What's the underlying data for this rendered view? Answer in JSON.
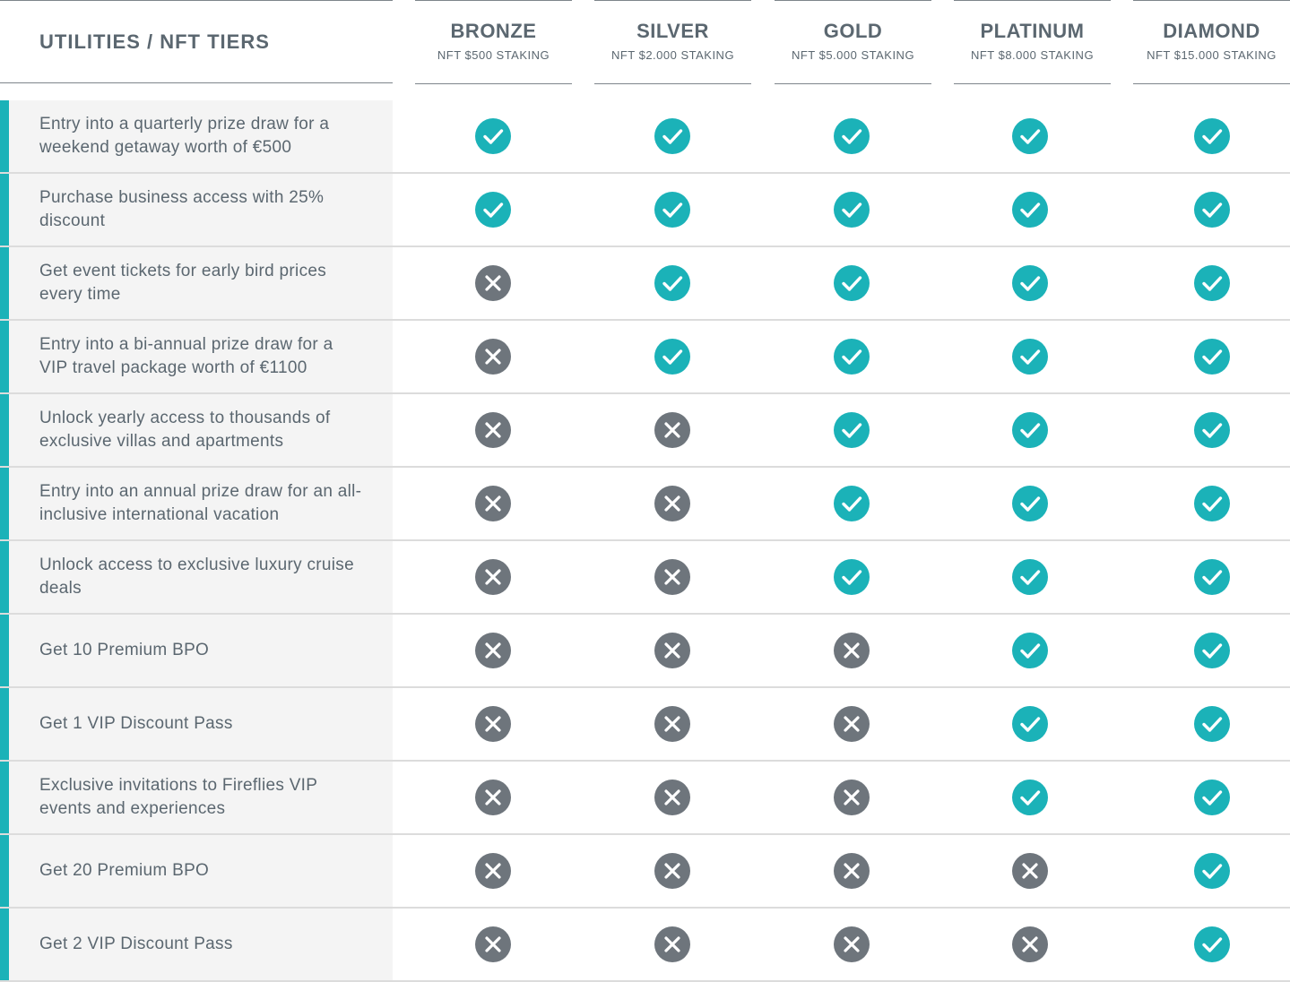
{
  "header": {
    "title": "UTILITIES / NFT TIERS"
  },
  "tiers": [
    {
      "name": "BRONZE",
      "staking": "NFT $500 STAKING"
    },
    {
      "name": "SILVER",
      "staking": "NFT $2.000 STAKING"
    },
    {
      "name": "GOLD",
      "staking": "NFT $5.000 STAKING"
    },
    {
      "name": "PLATINUM",
      "staking": "NFT $8.000 STAKING"
    },
    {
      "name": "DIAMOND",
      "staking": "NFT $15.000 STAKING"
    }
  ],
  "rows": [
    {
      "label": "Entry into a quarterly prize draw for a weekend getaway worth of €500",
      "values": [
        true,
        true,
        true,
        true,
        true
      ]
    },
    {
      "label": "Purchase business access with 25% discount",
      "values": [
        true,
        true,
        true,
        true,
        true
      ]
    },
    {
      "label": "Get event tickets for early bird prices every time",
      "values": [
        false,
        true,
        true,
        true,
        true
      ]
    },
    {
      "label": "Entry into a bi-annual prize draw for a VIP travel package worth of €1100",
      "values": [
        false,
        true,
        true,
        true,
        true
      ]
    },
    {
      "label": "Unlock yearly access to thousands of exclusive villas and apartments",
      "values": [
        false,
        false,
        true,
        true,
        true
      ]
    },
    {
      "label": "Entry into an annual prize draw for an all-inclusive international vacation",
      "values": [
        false,
        false,
        true,
        true,
        true
      ]
    },
    {
      "label": "Unlock access to exclusive luxury cruise deals",
      "values": [
        false,
        false,
        true,
        true,
        true
      ]
    },
    {
      "label": "Get 10 Premium BPO",
      "values": [
        false,
        false,
        false,
        true,
        true
      ]
    },
    {
      "label": "Get 1 VIP Discount Pass",
      "values": [
        false,
        false,
        false,
        true,
        true
      ]
    },
    {
      "label": "Exclusive invitations to Fireflies VIP events and experiences",
      "values": [
        false,
        false,
        false,
        true,
        true
      ]
    },
    {
      "label": "Get 20 Premium BPO",
      "values": [
        false,
        false,
        false,
        false,
        true
      ]
    },
    {
      "label": "Get 2 VIP Discount Pass",
      "values": [
        false,
        false,
        false,
        false,
        true
      ]
    }
  ],
  "icons": {
    "included": "check-icon",
    "excluded": "cross-icon"
  },
  "colors": {
    "accent": "#1bb2b8",
    "excluded": "#6e757c",
    "text": "#5b6770",
    "row_bg": "#f4f4f4"
  }
}
